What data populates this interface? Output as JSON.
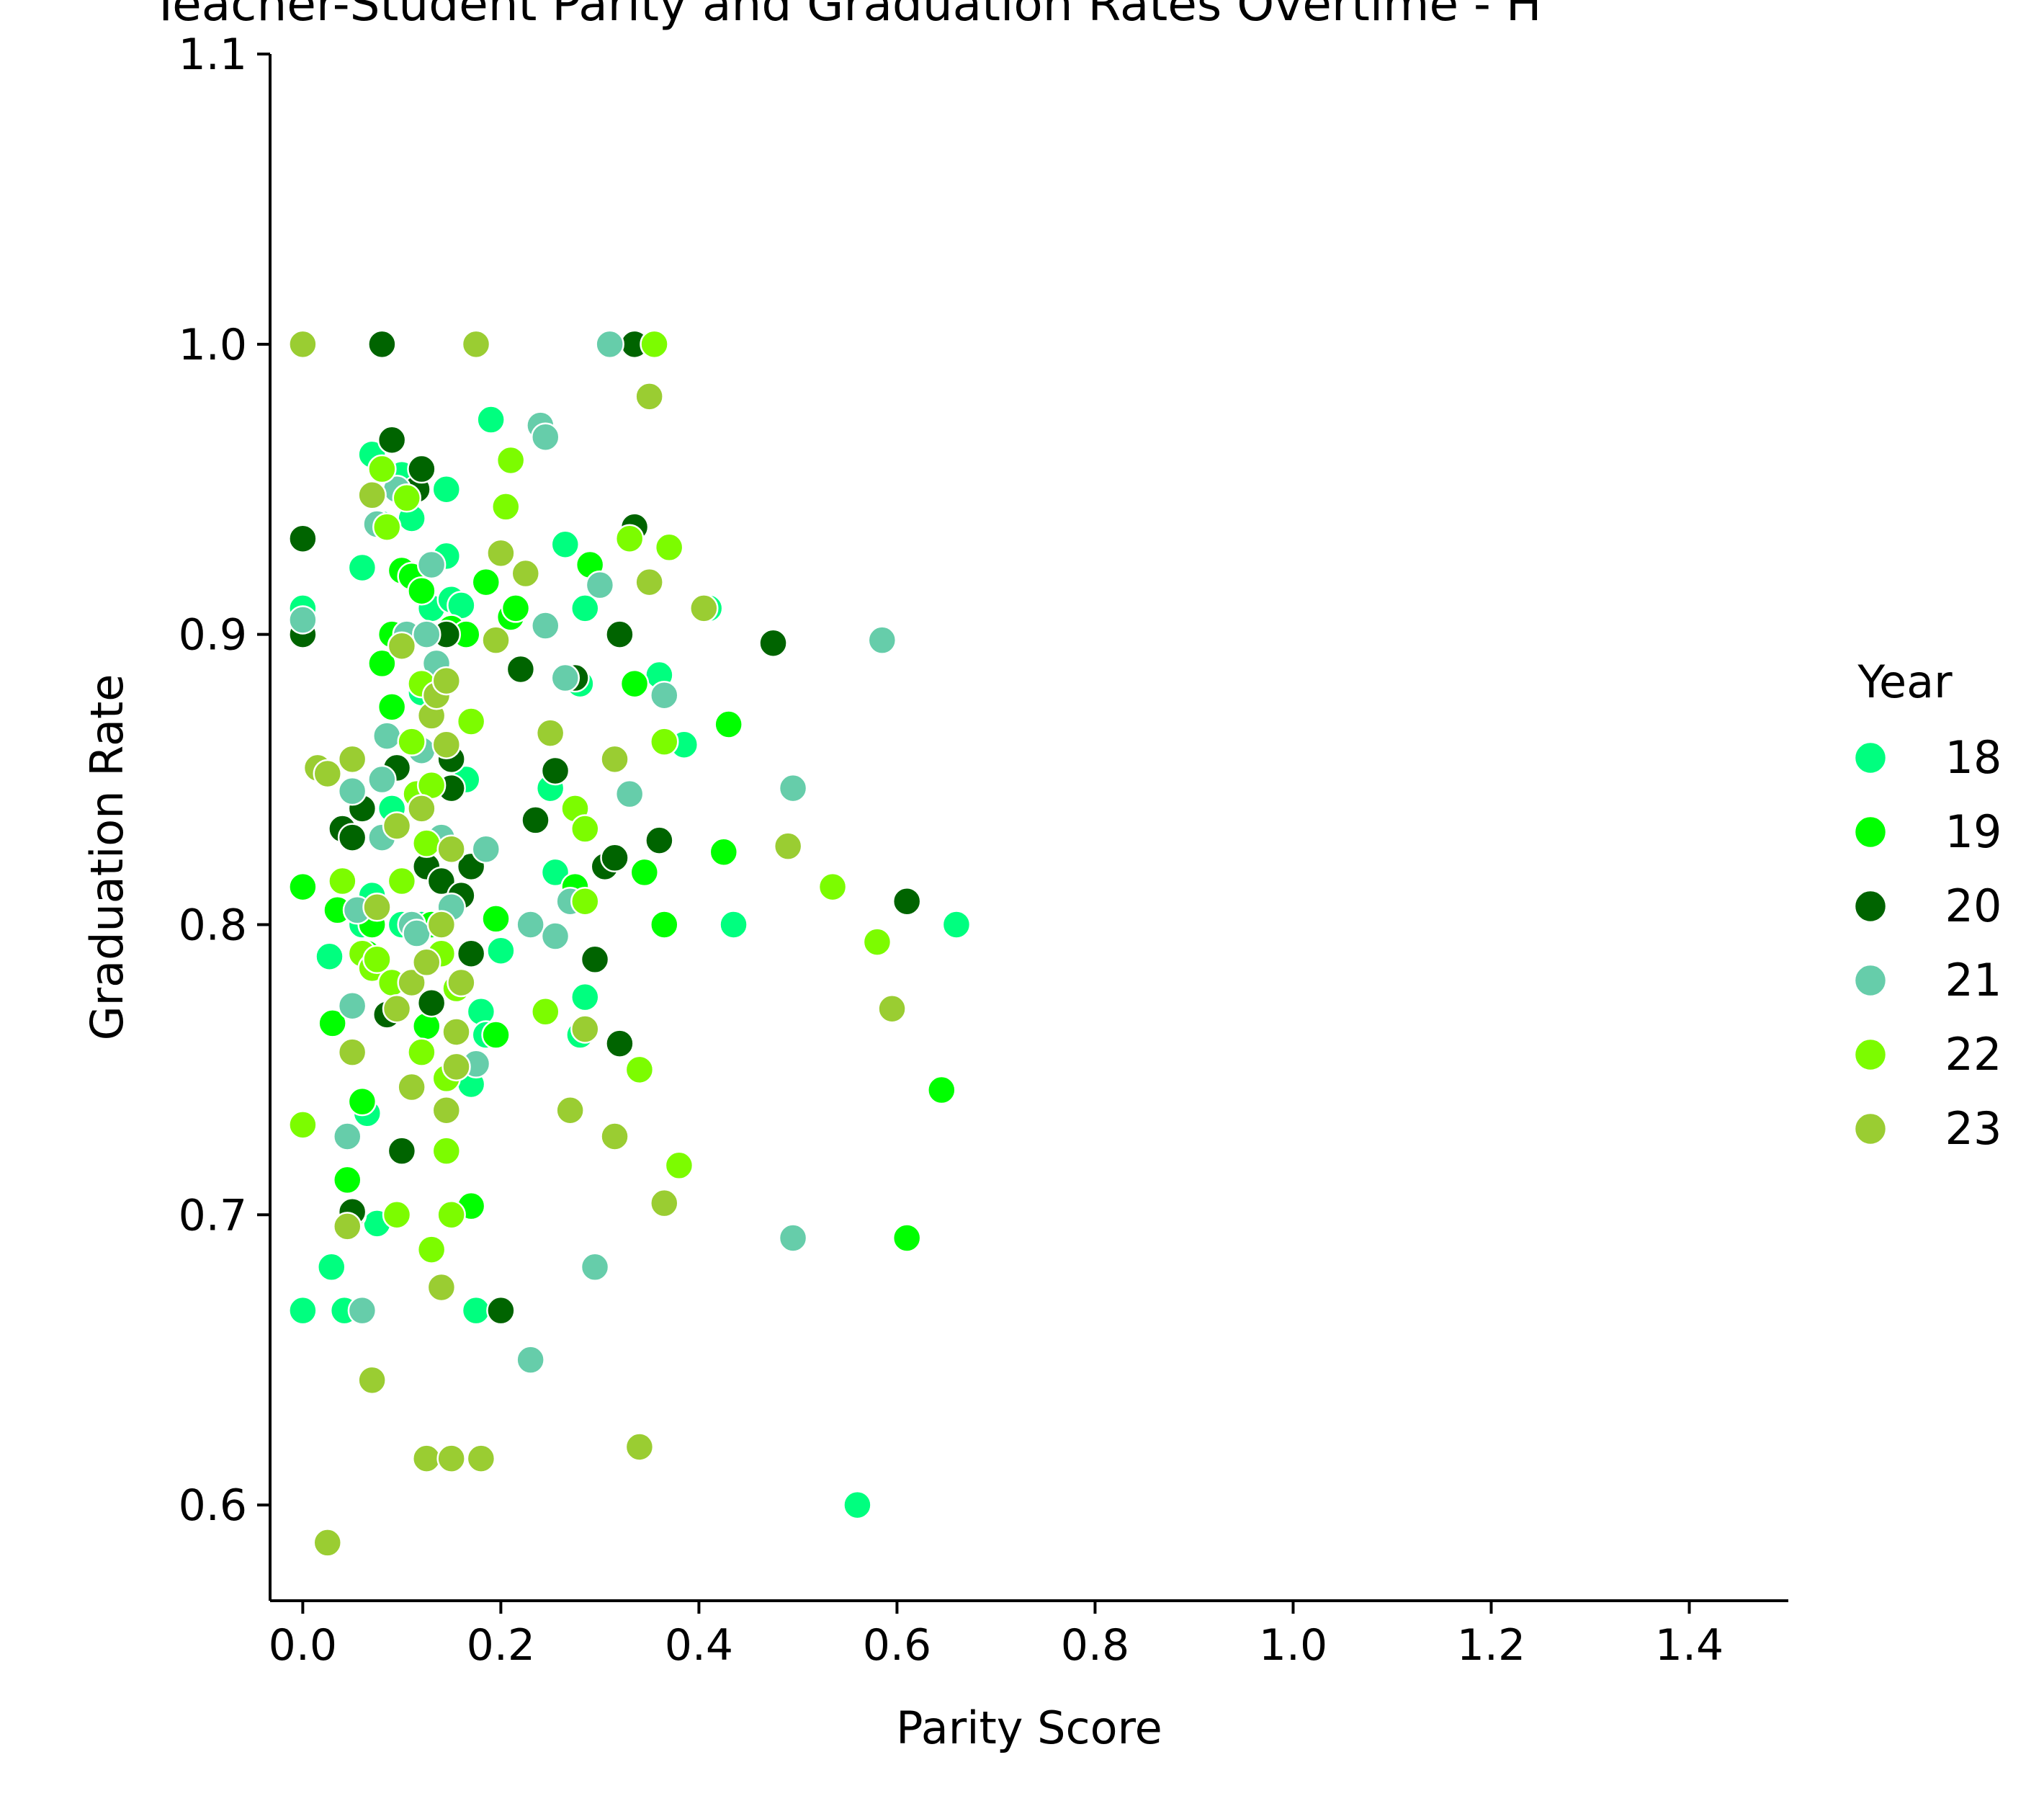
{
  "chart_data": {
    "type": "scatter",
    "title": "Teacher-Student Parity and Graduation Rates Overtime - H",
    "xlabel": "Parity Score",
    "ylabel": "Graduation Rate",
    "xlim": [
      -0.033,
      1.5
    ],
    "ylim": [
      0.567,
      1.1
    ],
    "x_ticks": [
      "0.0",
      "0.2",
      "0.4",
      "0.6",
      "0.8",
      "1.0",
      "1.2",
      "1.4"
    ],
    "y_ticks": [
      "0.6",
      "0.7",
      "0.8",
      "0.9",
      "1.0",
      "1.1"
    ],
    "grid": false,
    "legend": {
      "title": "Year",
      "placement": "right"
    },
    "series": [
      {
        "name": "18",
        "color": "#00ff7f",
        "points": [
          [
            0.0,
            0.667
          ],
          [
            0.0,
            0.909
          ],
          [
            0.027,
            0.789
          ],
          [
            0.029,
            0.682
          ],
          [
            0.042,
            0.667
          ],
          [
            0.06,
            0.923
          ],
          [
            0.07,
            0.962
          ],
          [
            0.08,
            0.938
          ],
          [
            0.1,
            0.955
          ],
          [
            0.11,
            0.94
          ],
          [
            0.13,
            0.909
          ],
          [
            0.145,
            0.95
          ],
          [
            0.145,
            0.927
          ],
          [
            0.15,
            0.912
          ],
          [
            0.16,
            0.91
          ],
          [
            0.12,
            0.88
          ],
          [
            0.165,
            0.85
          ],
          [
            0.09,
            0.84
          ],
          [
            0.1,
            0.8
          ],
          [
            0.07,
            0.81
          ],
          [
            0.06,
            0.8
          ],
          [
            0.12,
            0.8
          ],
          [
            0.075,
            0.697
          ],
          [
            0.065,
            0.735
          ],
          [
            0.17,
            0.745
          ],
          [
            0.18,
            0.77
          ],
          [
            0.185,
            0.762
          ],
          [
            0.175,
            0.667
          ],
          [
            0.19,
            0.974
          ],
          [
            0.2,
            0.791
          ],
          [
            0.25,
            0.847
          ],
          [
            0.255,
            0.818
          ],
          [
            0.265,
            0.931
          ],
          [
            0.28,
            0.883
          ],
          [
            0.285,
            0.909
          ],
          [
            0.285,
            0.775
          ],
          [
            0.28,
            0.762
          ],
          [
            0.36,
            0.886
          ],
          [
            0.385,
            0.862
          ],
          [
            0.41,
            0.909
          ],
          [
            0.435,
            0.8
          ],
          [
            0.56,
            0.6
          ],
          [
            0.66,
            0.8
          ]
        ]
      },
      {
        "name": "19",
        "color": "#00ff00",
        "points": [
          [
            0.0,
            0.813
          ],
          [
            0.03,
            0.766
          ],
          [
            0.035,
            0.805
          ],
          [
            0.045,
            0.712
          ],
          [
            0.05,
            0.7
          ],
          [
            0.06,
            0.739
          ],
          [
            0.065,
            0.79
          ],
          [
            0.07,
            0.8
          ],
          [
            0.08,
            0.89
          ],
          [
            0.09,
            0.875
          ],
          [
            0.09,
            0.9
          ],
          [
            0.1,
            0.922
          ],
          [
            0.11,
            0.92
          ],
          [
            0.12,
            0.915
          ],
          [
            0.125,
            0.765
          ],
          [
            0.13,
            0.8
          ],
          [
            0.15,
            0.902
          ],
          [
            0.165,
            0.9
          ],
          [
            0.17,
            0.703
          ],
          [
            0.185,
            0.918
          ],
          [
            0.195,
            0.762
          ],
          [
            0.195,
            0.802
          ],
          [
            0.21,
            0.906
          ],
          [
            0.215,
            0.909
          ],
          [
            0.275,
            0.813
          ],
          [
            0.29,
            0.924
          ],
          [
            0.335,
            0.883
          ],
          [
            0.345,
            0.818
          ],
          [
            0.365,
            0.8
          ],
          [
            0.43,
            0.869
          ],
          [
            0.425,
            0.825
          ],
          [
            0.61,
            0.692
          ],
          [
            0.645,
            0.743
          ]
        ]
      },
      {
        "name": "20",
        "color": "#006400",
        "points": [
          [
            0.0,
            0.933
          ],
          [
            0.0,
            0.9
          ],
          [
            0.04,
            0.833
          ],
          [
            0.05,
            0.701
          ],
          [
            0.05,
            0.83
          ],
          [
            0.06,
            0.84
          ],
          [
            0.08,
            1.0
          ],
          [
            0.085,
            0.769
          ],
          [
            0.09,
            0.967
          ],
          [
            0.095,
            0.854
          ],
          [
            0.1,
            0.722
          ],
          [
            0.115,
            0.95
          ],
          [
            0.12,
            0.957
          ],
          [
            0.125,
            0.82
          ],
          [
            0.13,
            0.773
          ],
          [
            0.14,
            0.815
          ],
          [
            0.145,
            0.9
          ],
          [
            0.15,
            0.857
          ],
          [
            0.15,
            0.847
          ],
          [
            0.16,
            0.81
          ],
          [
            0.17,
            0.82
          ],
          [
            0.17,
            0.79
          ],
          [
            0.2,
            0.667
          ],
          [
            0.22,
            0.888
          ],
          [
            0.235,
            0.836
          ],
          [
            0.255,
            0.853
          ],
          [
            0.275,
            0.885
          ],
          [
            0.295,
            0.788
          ],
          [
            0.305,
            0.82
          ],
          [
            0.315,
            0.823
          ],
          [
            0.32,
            0.9
          ],
          [
            0.32,
            0.759
          ],
          [
            0.335,
            1.0
          ],
          [
            0.335,
            0.937
          ],
          [
            0.36,
            0.829
          ],
          [
            0.475,
            0.897
          ],
          [
            0.61,
            0.808
          ]
        ]
      },
      {
        "name": "21",
        "color": "#66cdaa",
        "points": [
          [
            0.0,
            0.905
          ],
          [
            0.045,
            0.727
          ],
          [
            0.05,
            0.772
          ],
          [
            0.05,
            0.846
          ],
          [
            0.055,
            0.805
          ],
          [
            0.06,
            0.667
          ],
          [
            0.075,
            0.938
          ],
          [
            0.08,
            0.85
          ],
          [
            0.08,
            0.83
          ],
          [
            0.085,
            0.865
          ],
          [
            0.095,
            0.95
          ],
          [
            0.105,
            0.9
          ],
          [
            0.11,
            0.8
          ],
          [
            0.115,
            0.797
          ],
          [
            0.12,
            0.86
          ],
          [
            0.125,
            0.9
          ],
          [
            0.13,
            0.924
          ],
          [
            0.135,
            0.89
          ],
          [
            0.14,
            0.83
          ],
          [
            0.15,
            0.806
          ],
          [
            0.175,
            0.752
          ],
          [
            0.185,
            0.826
          ],
          [
            0.23,
            0.65
          ],
          [
            0.23,
            0.8
          ],
          [
            0.24,
            0.972
          ],
          [
            0.245,
            0.968
          ],
          [
            0.245,
            0.903
          ],
          [
            0.255,
            0.796
          ],
          [
            0.265,
            0.885
          ],
          [
            0.27,
            0.808
          ],
          [
            0.295,
            0.682
          ],
          [
            0.3,
            0.917
          ],
          [
            0.31,
            1.0
          ],
          [
            0.33,
            0.845
          ],
          [
            0.365,
            0.879
          ],
          [
            0.495,
            0.847
          ],
          [
            0.495,
            0.692
          ],
          [
            0.585,
            0.898
          ]
        ]
      },
      {
        "name": "22",
        "color": "#7cfc00",
        "points": [
          [
            0.0,
            0.731
          ],
          [
            0.04,
            0.815
          ],
          [
            0.06,
            0.79
          ],
          [
            0.07,
            0.785
          ],
          [
            0.075,
            0.788
          ],
          [
            0.08,
            0.957
          ],
          [
            0.085,
            0.937
          ],
          [
            0.09,
            0.78
          ],
          [
            0.095,
            0.7
          ],
          [
            0.1,
            0.815
          ],
          [
            0.105,
            0.947
          ],
          [
            0.11,
            0.863
          ],
          [
            0.115,
            0.845
          ],
          [
            0.12,
            0.883
          ],
          [
            0.12,
            0.756
          ],
          [
            0.125,
            0.828
          ],
          [
            0.13,
            0.688
          ],
          [
            0.13,
            0.848
          ],
          [
            0.14,
            0.79
          ],
          [
            0.145,
            0.722
          ],
          [
            0.145,
            0.747
          ],
          [
            0.15,
            0.7
          ],
          [
            0.155,
            0.778
          ],
          [
            0.17,
            0.87
          ],
          [
            0.205,
            0.944
          ],
          [
            0.21,
            0.96
          ],
          [
            0.245,
            0.77
          ],
          [
            0.275,
            0.84
          ],
          [
            0.285,
            0.833
          ],
          [
            0.285,
            0.808
          ],
          [
            0.33,
            0.933
          ],
          [
            0.34,
            0.75
          ],
          [
            0.355,
            1.0
          ],
          [
            0.365,
            0.863
          ],
          [
            0.37,
            0.93
          ],
          [
            0.38,
            0.717
          ],
          [
            0.535,
            0.813
          ],
          [
            0.58,
            0.794
          ]
        ]
      },
      {
        "name": "23",
        "color": "#9acd32",
        "points": [
          [
            0.0,
            1.0
          ],
          [
            0.015,
            0.854
          ],
          [
            0.025,
            0.852
          ],
          [
            0.025,
            0.587
          ],
          [
            0.045,
            0.696
          ],
          [
            0.05,
            0.756
          ],
          [
            0.05,
            0.857
          ],
          [
            0.07,
            0.643
          ],
          [
            0.07,
            0.948
          ],
          [
            0.075,
            0.806
          ],
          [
            0.095,
            0.771
          ],
          [
            0.095,
            0.834
          ],
          [
            0.1,
            0.896
          ],
          [
            0.11,
            0.744
          ],
          [
            0.11,
            0.78
          ],
          [
            0.12,
            0.84
          ],
          [
            0.125,
            0.616
          ],
          [
            0.125,
            0.787
          ],
          [
            0.13,
            0.872
          ],
          [
            0.135,
            0.879
          ],
          [
            0.14,
            0.8
          ],
          [
            0.14,
            0.675
          ],
          [
            0.145,
            0.862
          ],
          [
            0.145,
            0.736
          ],
          [
            0.145,
            0.884
          ],
          [
            0.15,
            0.616
          ],
          [
            0.15,
            0.826
          ],
          [
            0.155,
            0.763
          ],
          [
            0.155,
            0.751
          ],
          [
            0.16,
            0.78
          ],
          [
            0.175,
            1.0
          ],
          [
            0.18,
            0.616
          ],
          [
            0.195,
            0.898
          ],
          [
            0.2,
            0.928
          ],
          [
            0.225,
            0.921
          ],
          [
            0.25,
            0.866
          ],
          [
            0.27,
            0.736
          ],
          [
            0.285,
            0.764
          ],
          [
            0.315,
            0.857
          ],
          [
            0.315,
            0.727
          ],
          [
            0.34,
            0.62
          ],
          [
            0.35,
            0.918
          ],
          [
            0.35,
            0.982
          ],
          [
            0.365,
            0.704
          ],
          [
            0.405,
            0.909
          ],
          [
            0.49,
            0.827
          ],
          [
            0.595,
            0.771
          ]
        ]
      }
    ]
  }
}
